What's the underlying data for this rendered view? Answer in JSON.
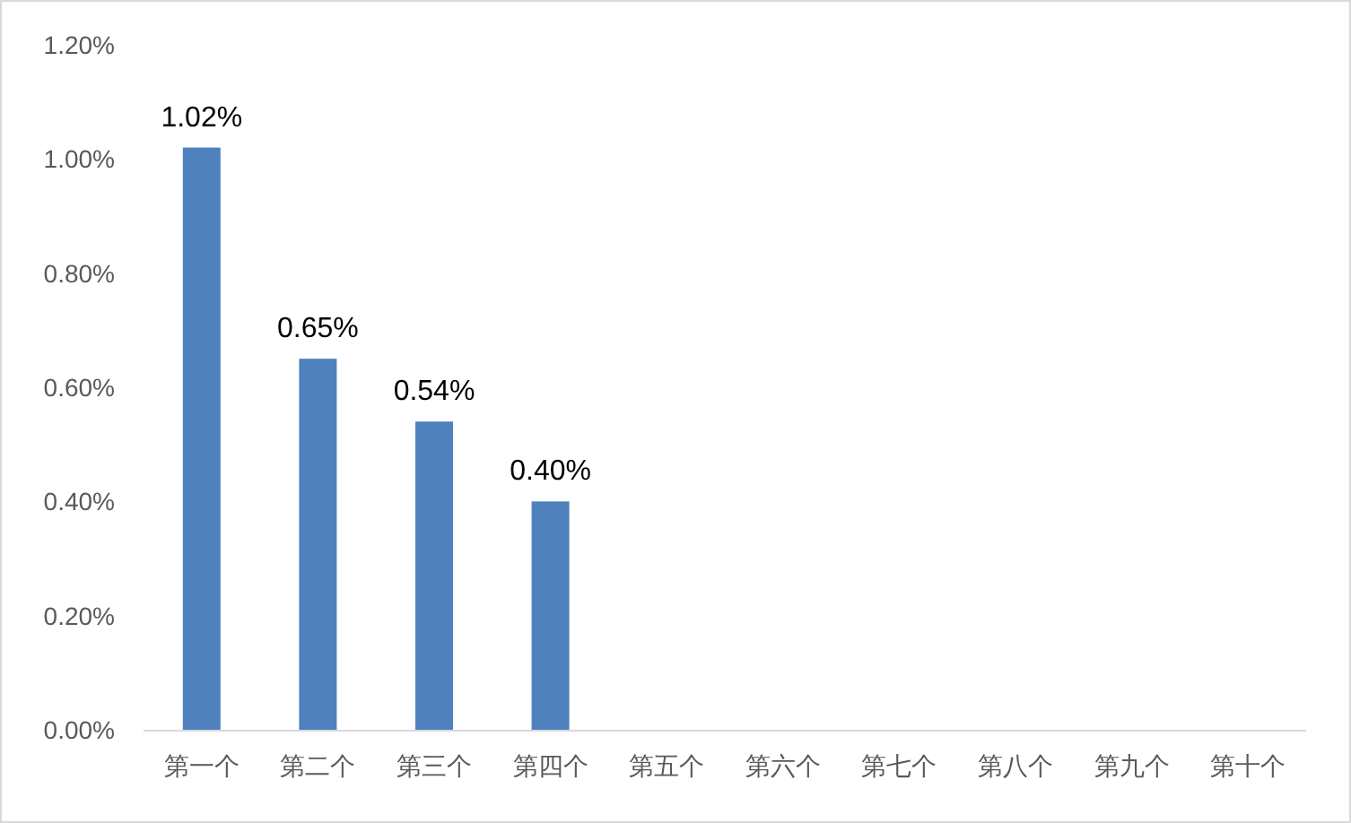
{
  "chart_data": {
    "type": "bar",
    "categories": [
      "第一个",
      "第二个",
      "第三个",
      "第四个",
      "第五个",
      "第六个",
      "第七个",
      "第八个",
      "第九个",
      "第十个"
    ],
    "values": [
      1.02,
      0.65,
      0.54,
      0.4,
      null,
      null,
      null,
      null,
      null,
      null
    ],
    "value_labels": [
      "1.02%",
      "0.65%",
      "0.54%",
      "0.40%",
      null,
      null,
      null,
      null,
      null,
      null
    ],
    "color": "#4f81bd",
    "ylim": [
      0,
      1.2
    ],
    "yticks": [
      {
        "value": 0,
        "label": "0.00%"
      },
      {
        "value": 0.2,
        "label": "0.20%"
      },
      {
        "value": 0.4,
        "label": "0.40%"
      },
      {
        "value": 0.6,
        "label": "0.60%"
      },
      {
        "value": 0.8,
        "label": "0.80%"
      },
      {
        "value": 1.0,
        "label": "1.00%"
      },
      {
        "value": 1.2,
        "label": "1.20%"
      }
    ]
  }
}
